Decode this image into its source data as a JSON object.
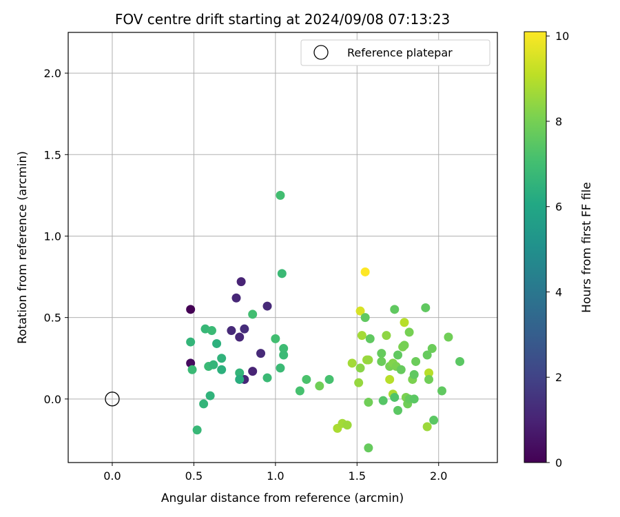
{
  "chart_data": {
    "type": "scatter",
    "title": "FOV centre drift starting at 2024/09/08 07:13:23",
    "xlabel": "Angular distance from reference (arcmin)",
    "ylabel": "Rotation from reference (arcmin)",
    "xlim": [
      -0.27,
      2.36
    ],
    "ylim": [
      -0.39,
      2.25
    ],
    "x_ticks": [
      "0.0",
      "0.5",
      "1.0",
      "1.5",
      "2.0"
    ],
    "y_ticks": [
      "0.0",
      "0.5",
      "1.0",
      "1.5",
      "2.0"
    ],
    "grid": true,
    "legend": {
      "position": "top-right",
      "label": "Reference platepar"
    },
    "reference_point": {
      "x": 0.0,
      "y": 0.0
    },
    "colorbar": {
      "label": "Hours from first FF file",
      "min": 0,
      "max": 10.1,
      "ticks": [
        "0",
        "2",
        "4",
        "6",
        "8",
        "10"
      ],
      "colormap": "viridis"
    },
    "points": [
      {
        "x": 0.48,
        "y": 0.55,
        "c": 0.0
      },
      {
        "x": 0.48,
        "y": 0.22,
        "c": 0.3
      },
      {
        "x": 0.79,
        "y": 0.72,
        "c": 1.0
      },
      {
        "x": 0.76,
        "y": 0.62,
        "c": 1.1
      },
      {
        "x": 0.95,
        "y": 0.57,
        "c": 1.2
      },
      {
        "x": 0.73,
        "y": 0.42,
        "c": 1.2
      },
      {
        "x": 0.81,
        "y": 0.43,
        "c": 1.3
      },
      {
        "x": 0.78,
        "y": 0.38,
        "c": 1.1
      },
      {
        "x": 0.91,
        "y": 0.28,
        "c": 1.2
      },
      {
        "x": 0.86,
        "y": 0.17,
        "c": 1.0
      },
      {
        "x": 0.81,
        "y": 0.12,
        "c": 1.1
      },
      {
        "x": 0.48,
        "y": 0.35,
        "c": 6.6
      },
      {
        "x": 0.49,
        "y": 0.18,
        "c": 6.8
      },
      {
        "x": 0.57,
        "y": 0.43,
        "c": 6.7
      },
      {
        "x": 0.61,
        "y": 0.42,
        "c": 6.8
      },
      {
        "x": 0.64,
        "y": 0.34,
        "c": 6.4
      },
      {
        "x": 0.67,
        "y": 0.25,
        "c": 6.5
      },
      {
        "x": 0.59,
        "y": 0.2,
        "c": 6.8
      },
      {
        "x": 0.62,
        "y": 0.21,
        "c": 6.6
      },
      {
        "x": 0.67,
        "y": 0.18,
        "c": 6.4
      },
      {
        "x": 0.6,
        "y": 0.02,
        "c": 6.5
      },
      {
        "x": 0.56,
        "y": -0.03,
        "c": 6.6
      },
      {
        "x": 0.52,
        "y": -0.19,
        "c": 6.7
      },
      {
        "x": 0.78,
        "y": 0.16,
        "c": 6.6
      },
      {
        "x": 0.78,
        "y": 0.12,
        "c": 6.3
      },
      {
        "x": 0.86,
        "y": 0.52,
        "c": 7.0
      },
      {
        "x": 0.95,
        "y": 0.13,
        "c": 6.8
      },
      {
        "x": 1.03,
        "y": 1.25,
        "c": 7.0
      },
      {
        "x": 1.04,
        "y": 0.77,
        "c": 6.8
      },
      {
        "x": 1.0,
        "y": 0.37,
        "c": 7.0
      },
      {
        "x": 1.05,
        "y": 0.31,
        "c": 6.9
      },
      {
        "x": 1.05,
        "y": 0.27,
        "c": 6.8
      },
      {
        "x": 1.03,
        "y": 0.19,
        "c": 6.8
      },
      {
        "x": 1.15,
        "y": 0.05,
        "c": 7.1
      },
      {
        "x": 1.19,
        "y": 0.12,
        "c": 7.2
      },
      {
        "x": 1.27,
        "y": 0.08,
        "c": 7.9
      },
      {
        "x": 1.33,
        "y": 0.12,
        "c": 7.1
      },
      {
        "x": 1.38,
        "y": -0.18,
        "c": 8.8
      },
      {
        "x": 1.41,
        "y": -0.15,
        "c": 8.7
      },
      {
        "x": 1.44,
        "y": -0.16,
        "c": 8.6
      },
      {
        "x": 1.47,
        "y": 0.22,
        "c": 8.7
      },
      {
        "x": 1.51,
        "y": 0.1,
        "c": 8.5
      },
      {
        "x": 1.52,
        "y": 0.19,
        "c": 8.3
      },
      {
        "x": 1.52,
        "y": 0.54,
        "c": 9.5
      },
      {
        "x": 1.55,
        "y": 0.78,
        "c": 10.1
      },
      {
        "x": 1.53,
        "y": 0.39,
        "c": 8.7
      },
      {
        "x": 1.55,
        "y": 0.5,
        "c": 7.6
      },
      {
        "x": 1.56,
        "y": 0.24,
        "c": 8.6
      },
      {
        "x": 1.57,
        "y": 0.24,
        "c": 8.5
      },
      {
        "x": 1.57,
        "y": -0.02,
        "c": 7.9
      },
      {
        "x": 1.58,
        "y": 0.37,
        "c": 7.6
      },
      {
        "x": 1.57,
        "y": -0.3,
        "c": 7.7
      },
      {
        "x": 1.65,
        "y": 0.28,
        "c": 7.7
      },
      {
        "x": 1.65,
        "y": 0.23,
        "c": 7.8
      },
      {
        "x": 1.66,
        "y": -0.01,
        "c": 7.4
      },
      {
        "x": 1.68,
        "y": 0.39,
        "c": 8.4
      },
      {
        "x": 1.7,
        "y": 0.2,
        "c": 8.0
      },
      {
        "x": 1.7,
        "y": 0.12,
        "c": 9.0
      },
      {
        "x": 1.72,
        "y": 0.22,
        "c": 8.2
      },
      {
        "x": 1.72,
        "y": 0.03,
        "c": 8.8
      },
      {
        "x": 1.73,
        "y": 0.55,
        "c": 7.6
      },
      {
        "x": 1.73,
        "y": 0.01,
        "c": 7.3
      },
      {
        "x": 1.74,
        "y": 0.2,
        "c": 8.1
      },
      {
        "x": 1.75,
        "y": 0.27,
        "c": 7.6
      },
      {
        "x": 1.75,
        "y": -0.07,
        "c": 7.5
      },
      {
        "x": 1.77,
        "y": 0.18,
        "c": 7.7
      },
      {
        "x": 1.78,
        "y": 0.32,
        "c": 8.1
      },
      {
        "x": 1.79,
        "y": 0.33,
        "c": 8.0
      },
      {
        "x": 1.79,
        "y": 0.47,
        "c": 9.0
      },
      {
        "x": 1.8,
        "y": 0.01,
        "c": 8.1
      },
      {
        "x": 1.81,
        "y": -0.03,
        "c": 7.9
      },
      {
        "x": 1.82,
        "y": 0.0,
        "c": 7.7
      },
      {
        "x": 1.82,
        "y": 0.41,
        "c": 8.0
      },
      {
        "x": 1.84,
        "y": 0.12,
        "c": 8.1
      },
      {
        "x": 1.85,
        "y": 0.15,
        "c": 7.6
      },
      {
        "x": 1.85,
        "y": 0.0,
        "c": 7.5
      },
      {
        "x": 1.86,
        "y": 0.23,
        "c": 7.8
      },
      {
        "x": 1.92,
        "y": 0.56,
        "c": 7.6
      },
      {
        "x": 1.93,
        "y": 0.27,
        "c": 7.7
      },
      {
        "x": 1.93,
        "y": -0.17,
        "c": 8.6
      },
      {
        "x": 1.94,
        "y": 0.16,
        "c": 9.0
      },
      {
        "x": 1.94,
        "y": 0.12,
        "c": 7.9
      },
      {
        "x": 1.96,
        "y": 0.31,
        "c": 7.8
      },
      {
        "x": 1.97,
        "y": -0.13,
        "c": 7.5
      },
      {
        "x": 2.02,
        "y": 0.05,
        "c": 7.6
      },
      {
        "x": 2.06,
        "y": 0.38,
        "c": 7.9
      },
      {
        "x": 2.13,
        "y": 0.23,
        "c": 7.5
      }
    ]
  }
}
